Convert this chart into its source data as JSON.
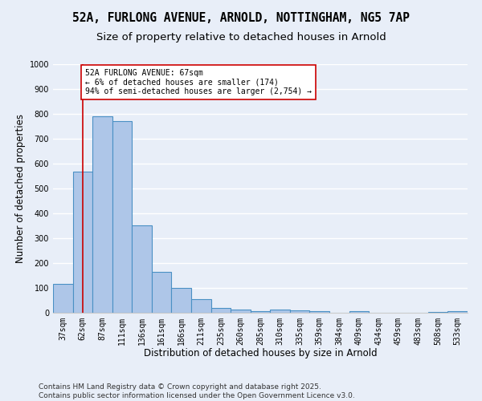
{
  "title": "52A, FURLONG AVENUE, ARNOLD, NOTTINGHAM, NG5 7AP",
  "subtitle": "Size of property relative to detached houses in Arnold",
  "xlabel": "Distribution of detached houses by size in Arnold",
  "ylabel": "Number of detached properties",
  "categories": [
    "37sqm",
    "62sqm",
    "87sqm",
    "111sqm",
    "136sqm",
    "161sqm",
    "186sqm",
    "211sqm",
    "235sqm",
    "260sqm",
    "285sqm",
    "310sqm",
    "335sqm",
    "359sqm",
    "384sqm",
    "409sqm",
    "434sqm",
    "459sqm",
    "483sqm",
    "508sqm",
    "533sqm"
  ],
  "values": [
    115,
    567,
    790,
    770,
    352,
    165,
    100,
    55,
    20,
    13,
    8,
    12,
    10,
    5,
    0,
    8,
    0,
    0,
    0,
    3,
    5
  ],
  "bar_color": "#aec6e8",
  "bar_edge_color": "#4a90c4",
  "vline_x": 1,
  "vline_color": "#cc0000",
  "annotation_text": "52A FURLONG AVENUE: 67sqm\n← 6% of detached houses are smaller (174)\n94% of semi-detached houses are larger (2,754) →",
  "annotation_box_color": "#ffffff",
  "annotation_box_edge": "#cc0000",
  "ylim": [
    0,
    1000
  ],
  "yticks": [
    0,
    100,
    200,
    300,
    400,
    500,
    600,
    700,
    800,
    900,
    1000
  ],
  "background_color": "#e8eef8",
  "grid_color": "#ffffff",
  "footer_line1": "Contains HM Land Registry data © Crown copyright and database right 2025.",
  "footer_line2": "Contains public sector information licensed under the Open Government Licence v3.0.",
  "title_fontsize": 10.5,
  "subtitle_fontsize": 9.5,
  "axis_label_fontsize": 8.5,
  "tick_fontsize": 7,
  "annotation_fontsize": 7,
  "footer_fontsize": 6.5
}
